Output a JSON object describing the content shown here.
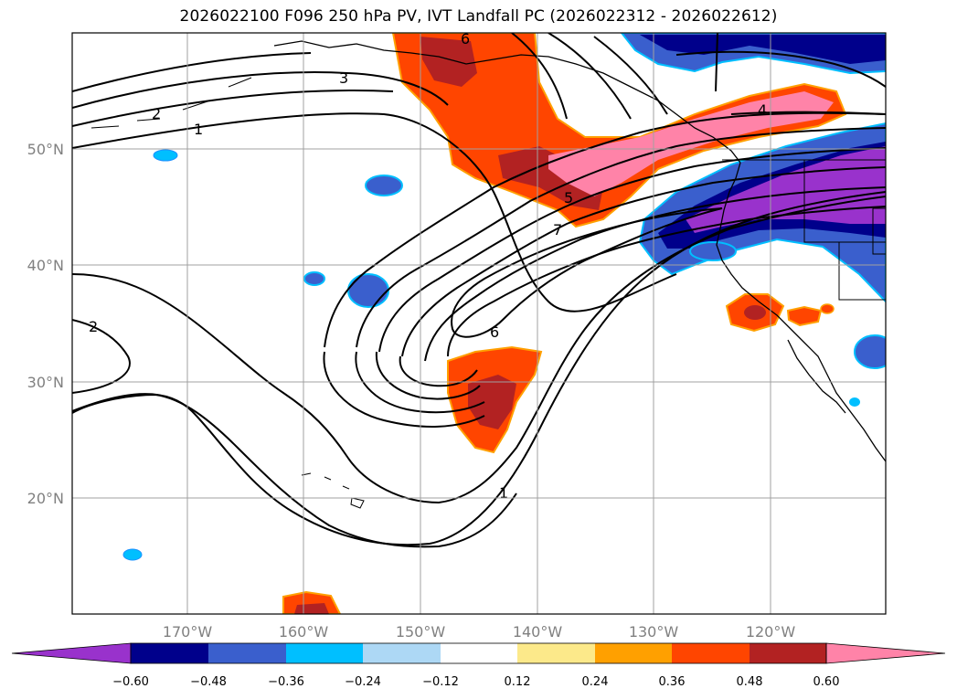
{
  "title": "2026022100 F096 250 hPa PV, IVT Landfall PC (2026022312 - 2026022612)",
  "map": {
    "lat_labels": [
      "50°N",
      "40°N",
      "30°N",
      "20°N"
    ],
    "lon_labels": [
      "170°W",
      "160°W",
      "150°W",
      "140°W",
      "130°W",
      "120°W"
    ],
    "contour_labels": [
      "6",
      "3",
      "2",
      "1",
      "4",
      "5",
      "7",
      "6",
      "2",
      "1"
    ]
  },
  "colorbar": {
    "ticks": [
      "−0.60",
      "−0.48",
      "−0.36",
      "−0.24",
      "−0.12",
      "0.12",
      "0.24",
      "0.36",
      "0.48",
      "0.60"
    ],
    "colors": [
      "#9932cc",
      "#00008b",
      "#3a5fcd",
      "#00bfff",
      "#add8f5",
      "#ffffff",
      "#fce98a",
      "#ffa000",
      "#ff4500",
      "#b22222",
      "#ff83a8"
    ]
  }
}
